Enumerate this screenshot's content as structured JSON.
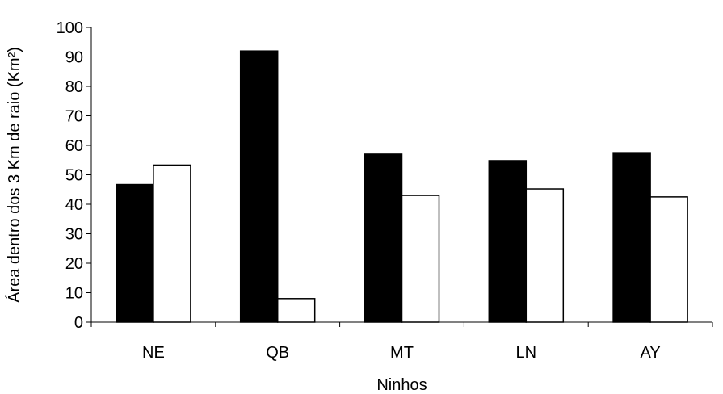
{
  "chart_data": {
    "type": "bar",
    "title": "",
    "xlabel": "Ninhos",
    "ylabel": "Área dentro dos 3 Km de raio (Km²)",
    "categories": [
      "NE",
      "QB",
      "MT",
      "LN",
      "AY"
    ],
    "series": [
      {
        "values": [
          46.7,
          92.0,
          57.0,
          54.8,
          57.5
        ],
        "color": "#000000"
      },
      {
        "values": [
          53.3,
          8.0,
          43.0,
          45.2,
          42.5
        ],
        "color": "#ffffff"
      }
    ],
    "ylim": [
      0,
      100
    ],
    "yticks": [
      0,
      10,
      20,
      30,
      40,
      50,
      60,
      70,
      80,
      90,
      100
    ],
    "grid": false,
    "legend": "none"
  }
}
